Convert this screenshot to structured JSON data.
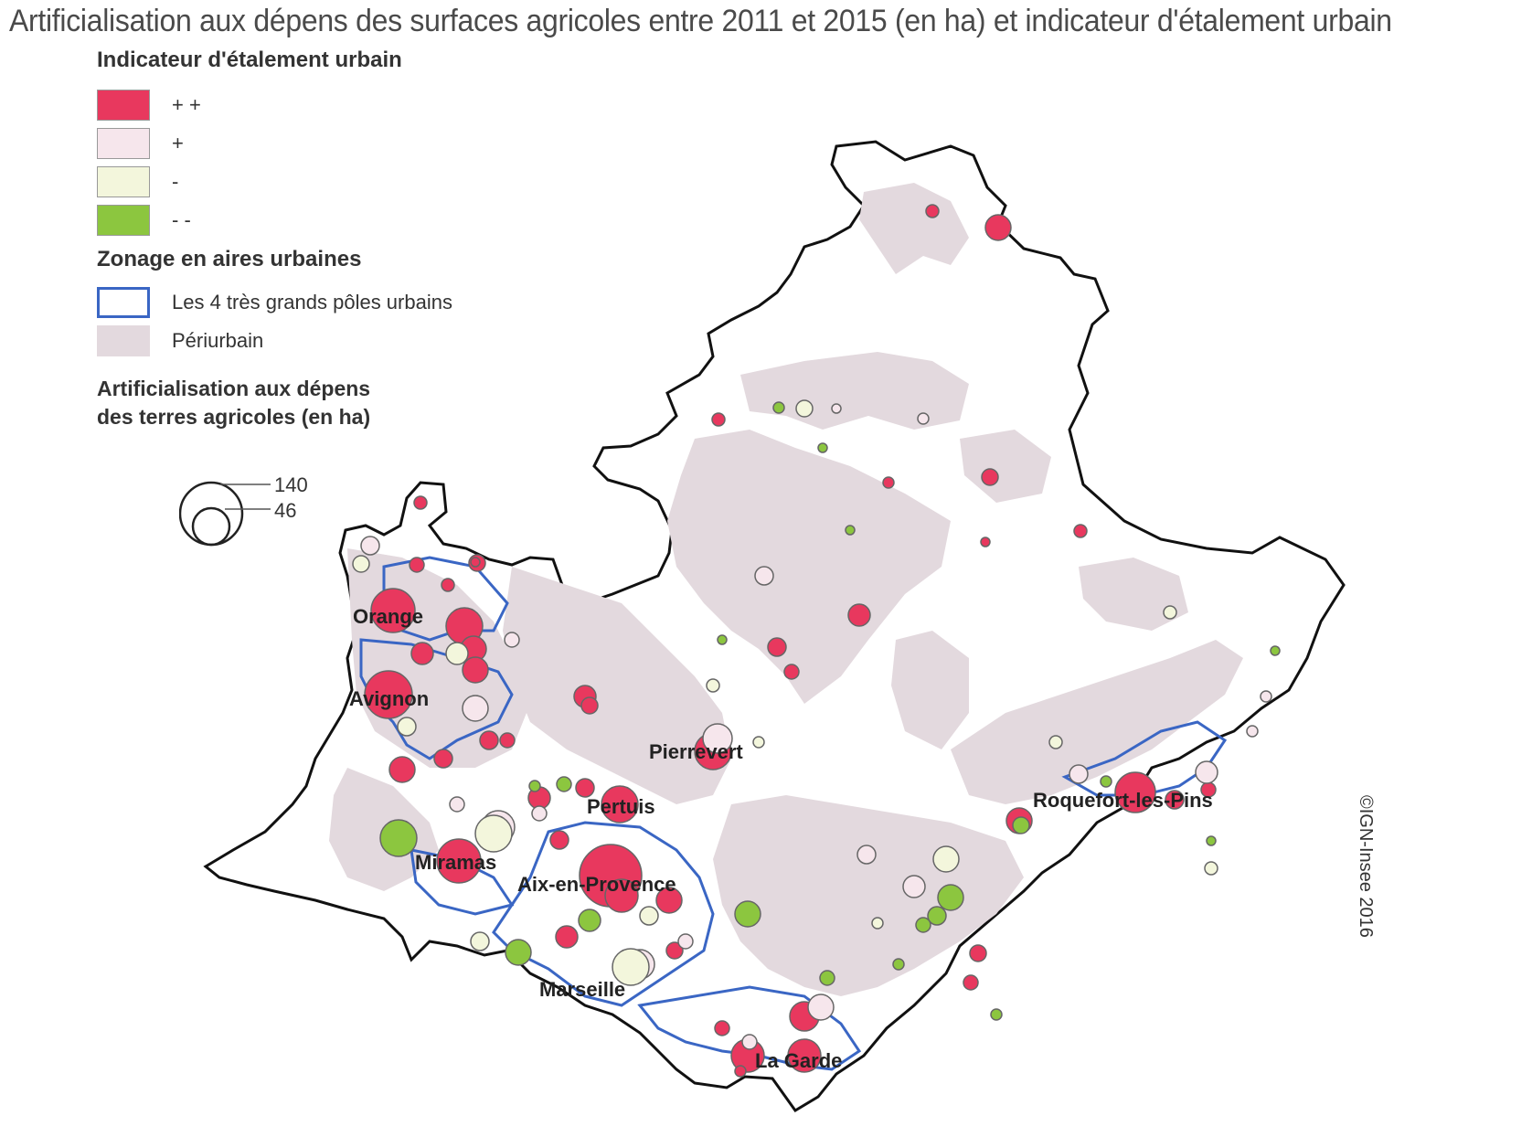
{
  "title": "Artificialisation aux dépens des surfaces agricoles entre 2011 et 2015 (en ha) et indicateur d'étalement urbain",
  "legend": {
    "spread_heading": "Indicateur d'étalement urbain",
    "spread_classes": [
      {
        "label": "+ +",
        "color": "#e8385e"
      },
      {
        "label": "+",
        "color": "#f6e6ec"
      },
      {
        "label": "-",
        "color": "#f3f6dc"
      },
      {
        "label": "- -",
        "color": "#8cc63f"
      }
    ],
    "zoning_heading": "Zonage en aires urbaines",
    "zoning_classes": [
      {
        "label": "Les 4 très grands pôles urbains",
        "color": "#3a66c4"
      },
      {
        "label": "Périurbain",
        "color": "#e3d9de"
      }
    ],
    "circle_heading_line1": "Artificialisation aux dépens",
    "circle_heading_line2": "des terres agricoles (en ha)",
    "circle_values": [
      "140",
      "46"
    ]
  },
  "cities": [
    "Orange",
    "Avignon",
    "Pierrevert",
    "Pertuis",
    "Miramas",
    "Aix-en-Provence",
    "Marseille",
    "La Garde",
    "Roquefort-les-Pins"
  ],
  "credit": "©IGN-Insee 2016",
  "colors": {
    "plus_plus": "#e8385e",
    "plus": "#f6e6ec",
    "minus": "#f3f6dc",
    "minus_minus": "#8cc63f",
    "poles": "#3a66c4",
    "periurbain": "#e3d9de"
  }
}
